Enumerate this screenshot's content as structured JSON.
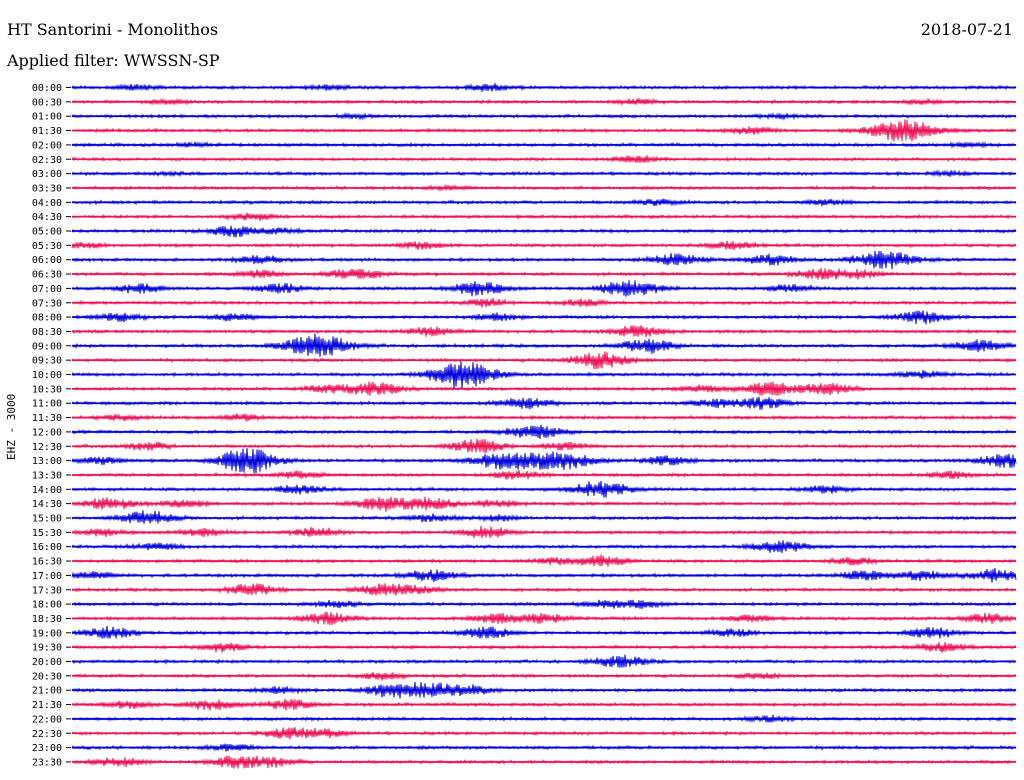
{
  "header": {
    "title": "HT Santorini - Monolithos",
    "date": "2018-07-21",
    "filter": "Applied filter: WWSSN-SP"
  },
  "chart_data": {
    "type": "line",
    "title": "HT Santorini - Monolithos",
    "ylabel": "EHZ - 3000",
    "colors": {
      "even_row": "#0000dd",
      "odd_row": "#ee1155"
    },
    "rows": [
      {
        "time": "00:00",
        "events": [
          [
            0.07,
            0.2
          ],
          [
            0.27,
            0.2
          ],
          [
            0.44,
            0.3
          ]
        ]
      },
      {
        "time": "00:30",
        "events": [
          [
            0.1,
            0.15
          ],
          [
            0.6,
            0.2
          ],
          [
            0.9,
            0.15
          ]
        ]
      },
      {
        "time": "01:00",
        "events": [
          [
            0.3,
            0.15
          ],
          [
            0.75,
            0.15
          ]
        ]
      },
      {
        "time": "01:30",
        "events": [
          [
            0.72,
            0.3
          ],
          [
            0.88,
            1.0
          ]
        ]
      },
      {
        "time": "02:00",
        "events": [
          [
            0.13,
            0.15
          ],
          [
            0.95,
            0.15
          ]
        ]
      },
      {
        "time": "02:30",
        "events": [
          [
            0.6,
            0.3
          ]
        ]
      },
      {
        "time": "03:00",
        "events": [
          [
            0.1,
            0.1
          ],
          [
            0.93,
            0.15
          ]
        ]
      },
      {
        "time": "03:30",
        "events": [
          [
            0.4,
            0.1
          ]
        ]
      },
      {
        "time": "04:00",
        "events": [
          [
            0.62,
            0.25
          ],
          [
            0.8,
            0.2
          ]
        ]
      },
      {
        "time": "04:30",
        "events": [
          [
            0.19,
            0.3
          ]
        ]
      },
      {
        "time": "05:00",
        "events": [
          [
            0.17,
            0.45
          ],
          [
            0.22,
            0.2
          ]
        ]
      },
      {
        "time": "05:30",
        "events": [
          [
            0.01,
            0.2
          ],
          [
            0.37,
            0.3
          ],
          [
            0.7,
            0.35
          ]
        ]
      },
      {
        "time": "06:00",
        "events": [
          [
            0.2,
            0.35
          ],
          [
            0.64,
            0.5
          ],
          [
            0.74,
            0.45
          ],
          [
            0.86,
            0.8
          ]
        ]
      },
      {
        "time": "06:30",
        "events": [
          [
            0.2,
            0.3
          ],
          [
            0.3,
            0.55
          ],
          [
            0.79,
            0.4
          ],
          [
            0.83,
            0.4
          ]
        ]
      },
      {
        "time": "07:00",
        "events": [
          [
            0.07,
            0.4
          ],
          [
            0.22,
            0.4
          ],
          [
            0.43,
            0.6
          ],
          [
            0.59,
            0.75
          ],
          [
            0.76,
            0.3
          ]
        ]
      },
      {
        "time": "07:30",
        "events": [
          [
            0.44,
            0.3
          ],
          [
            0.54,
            0.3
          ]
        ]
      },
      {
        "time": "08:00",
        "events": [
          [
            0.05,
            0.35
          ],
          [
            0.17,
            0.3
          ],
          [
            0.45,
            0.3
          ],
          [
            0.9,
            0.55
          ]
        ]
      },
      {
        "time": "08:30",
        "events": [
          [
            0.38,
            0.4
          ],
          [
            0.6,
            0.5
          ]
        ]
      },
      {
        "time": "09:00",
        "events": [
          [
            0.26,
            1.0
          ],
          [
            0.61,
            0.6
          ],
          [
            0.96,
            0.5
          ]
        ]
      },
      {
        "time": "09:30",
        "events": [
          [
            0.56,
            0.75
          ]
        ]
      },
      {
        "time": "10:00",
        "events": [
          [
            0.4,
            0.5
          ],
          [
            0.42,
            0.9
          ],
          [
            0.9,
            0.3
          ]
        ]
      },
      {
        "time": "10:30",
        "events": [
          [
            0.27,
            0.3
          ],
          [
            0.32,
            0.6
          ],
          [
            0.67,
            0.3
          ],
          [
            0.74,
            0.6
          ],
          [
            0.8,
            0.5
          ]
        ]
      },
      {
        "time": "11:00",
        "events": [
          [
            0.48,
            0.5
          ],
          [
            0.68,
            0.35
          ],
          [
            0.73,
            0.5
          ]
        ]
      },
      {
        "time": "11:30",
        "events": [
          [
            0.05,
            0.2
          ],
          [
            0.18,
            0.25
          ]
        ]
      },
      {
        "time": "12:00",
        "events": [
          [
            0.49,
            0.6
          ]
        ]
      },
      {
        "time": "12:30",
        "events": [
          [
            0.08,
            0.35
          ],
          [
            0.43,
            0.6
          ],
          [
            0.52,
            0.3
          ]
        ]
      },
      {
        "time": "13:00",
        "events": [
          [
            0.03,
            0.3
          ],
          [
            0.18,
            0.5
          ],
          [
            0.19,
            0.7
          ],
          [
            0.45,
            0.6
          ],
          [
            0.49,
            0.6
          ],
          [
            0.53,
            0.6
          ],
          [
            0.63,
            0.4
          ],
          [
            0.99,
            0.6
          ]
        ]
      },
      {
        "time": "13:30",
        "events": [
          [
            0.24,
            0.3
          ],
          [
            0.47,
            0.4
          ],
          [
            0.93,
            0.3
          ]
        ]
      },
      {
        "time": "14:00",
        "events": [
          [
            0.24,
            0.4
          ],
          [
            0.56,
            0.7
          ],
          [
            0.8,
            0.3
          ]
        ]
      },
      {
        "time": "14:30",
        "events": [
          [
            0.04,
            0.5
          ],
          [
            0.12,
            0.35
          ],
          [
            0.33,
            0.6
          ],
          [
            0.38,
            0.5
          ],
          [
            0.45,
            0.3
          ]
        ]
      },
      {
        "time": "15:00",
        "events": [
          [
            0.08,
            0.6
          ],
          [
            0.38,
            0.3
          ],
          [
            0.45,
            0.25
          ]
        ]
      },
      {
        "time": "15:30",
        "events": [
          [
            0.03,
            0.3
          ],
          [
            0.14,
            0.35
          ],
          [
            0.26,
            0.4
          ],
          [
            0.44,
            0.5
          ]
        ]
      },
      {
        "time": "16:00",
        "events": [
          [
            0.09,
            0.3
          ],
          [
            0.75,
            0.55
          ]
        ]
      },
      {
        "time": "16:30",
        "events": [
          [
            0.51,
            0.25
          ],
          [
            0.56,
            0.5
          ],
          [
            0.83,
            0.3
          ]
        ]
      },
      {
        "time": "17:00",
        "events": [
          [
            0.02,
            0.3
          ],
          [
            0.38,
            0.5
          ],
          [
            0.84,
            0.4
          ],
          [
            0.9,
            0.4
          ],
          [
            0.98,
            0.55
          ]
        ]
      },
      {
        "time": "17:30",
        "events": [
          [
            0.19,
            0.5
          ],
          [
            0.33,
            0.5
          ],
          [
            0.37,
            0.3
          ]
        ]
      },
      {
        "time": "18:00",
        "events": [
          [
            0.28,
            0.3
          ],
          [
            0.56,
            0.3
          ],
          [
            0.6,
            0.3
          ]
        ]
      },
      {
        "time": "18:30",
        "events": [
          [
            0.27,
            0.5
          ],
          [
            0.45,
            0.4
          ],
          [
            0.5,
            0.4
          ],
          [
            0.72,
            0.3
          ],
          [
            0.97,
            0.4
          ]
        ]
      },
      {
        "time": "19:00",
        "events": [
          [
            0.04,
            0.5
          ],
          [
            0.44,
            0.5
          ],
          [
            0.7,
            0.3
          ],
          [
            0.91,
            0.45
          ]
        ]
      },
      {
        "time": "19:30",
        "events": [
          [
            0.16,
            0.35
          ],
          [
            0.92,
            0.4
          ]
        ]
      },
      {
        "time": "20:00",
        "events": [
          [
            0.58,
            0.5
          ]
        ]
      },
      {
        "time": "20:30",
        "events": [
          [
            0.33,
            0.3
          ],
          [
            0.73,
            0.25
          ]
        ]
      },
      {
        "time": "21:00",
        "events": [
          [
            0.22,
            0.3
          ],
          [
            0.34,
            0.6
          ],
          [
            0.38,
            0.55
          ],
          [
            0.42,
            0.4
          ]
        ]
      },
      {
        "time": "21:30",
        "events": [
          [
            0.06,
            0.3
          ],
          [
            0.15,
            0.45
          ],
          [
            0.23,
            0.45
          ]
        ]
      },
      {
        "time": "22:00",
        "events": [
          [
            0.74,
            0.25
          ]
        ]
      },
      {
        "time": "22:30",
        "events": [
          [
            0.23,
            0.45
          ],
          [
            0.27,
            0.3
          ]
        ]
      },
      {
        "time": "23:00",
        "events": [
          [
            0.17,
            0.25
          ]
        ]
      },
      {
        "time": "23:30",
        "events": [
          [
            0.05,
            0.4
          ],
          [
            0.17,
            0.45
          ],
          [
            0.21,
            0.45
          ]
        ]
      }
    ]
  }
}
